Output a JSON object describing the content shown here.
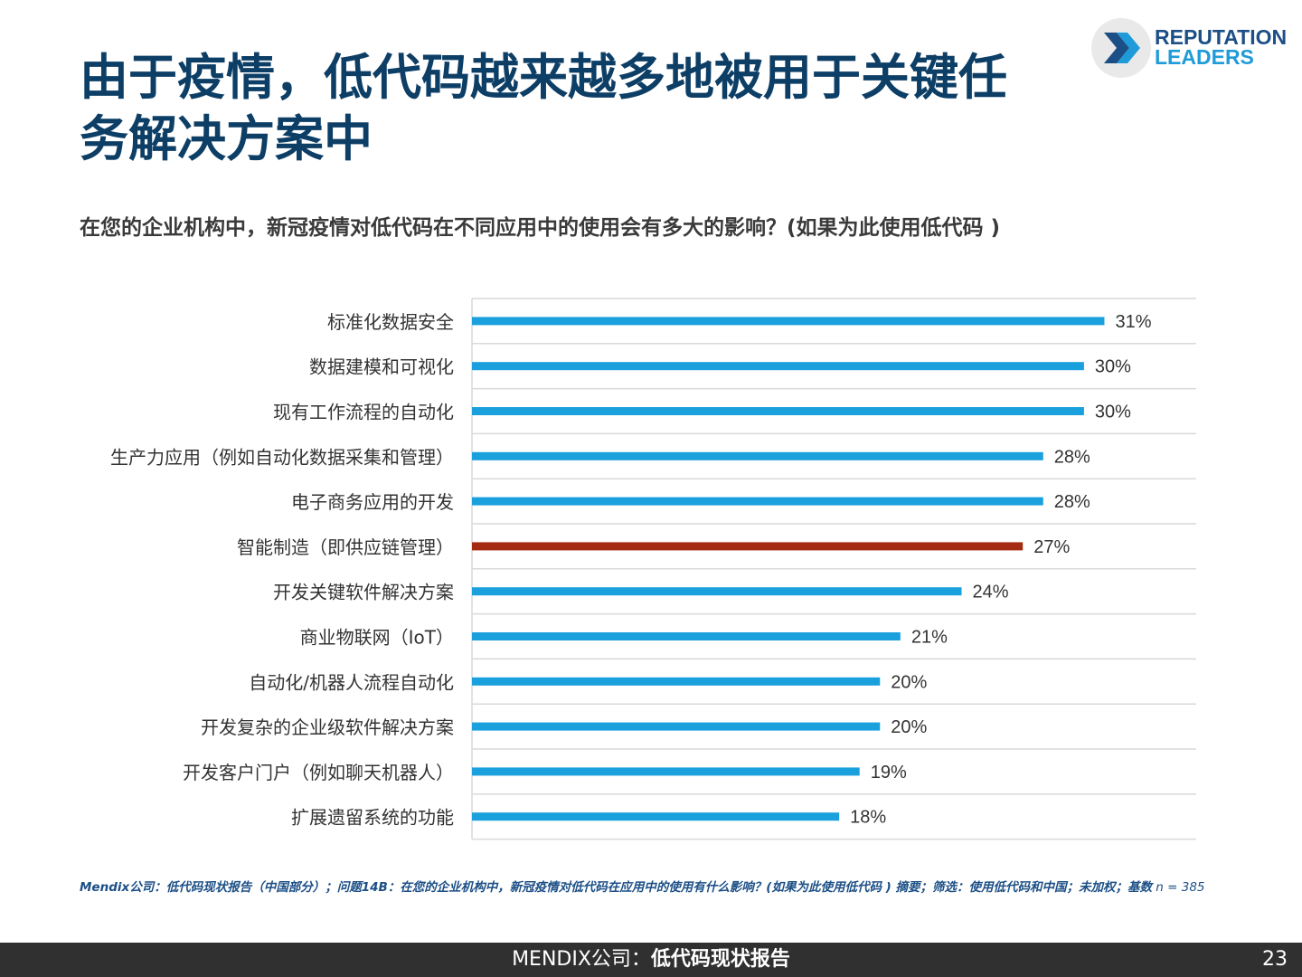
{
  "title": {
    "line1": "由于疫情，低代码越来越多地被用于关键任",
    "line2": "务解决方案中"
  },
  "logo": {
    "line1": "REPUTATION",
    "line2": "LEADERS"
  },
  "question": "在您的企业机构中，新冠疫情对低代码在不同应用中的使用会有多大的影响？(如果为此使用低代码 )",
  "chart_data": {
    "type": "bar",
    "orientation": "horizontal",
    "categories": [
      "标准化数据安全",
      "数据建模和可视化",
      "现有工作流程的自动化",
      "生产力应用（例如自动化数据采集和管理）",
      "电子商务应用的开发",
      "智能制造（即供应链管理）",
      "开发关键软件解决方案",
      "商业物联网（IoT）",
      "自动化/机器人流程自动化",
      "开发复杂的企业级软件解决方案",
      "开发客户门户（例如聊天机器人）",
      "扩展遗留系统的功能"
    ],
    "values": [
      31,
      30,
      30,
      28,
      28,
      27,
      24,
      21,
      20,
      20,
      19,
      18
    ],
    "value_labels": [
      "31%",
      "30%",
      "30%",
      "28%",
      "28%",
      "27%",
      "24%",
      "21%",
      "20%",
      "20%",
      "19%",
      "18%"
    ],
    "highlight_index": 5,
    "colors": {
      "bar": "#1aa0dc",
      "highlight": "#a52a12",
      "grid": "#d9d9d9",
      "label": "#333333"
    },
    "xlim": [
      0,
      35.5
    ],
    "grid": true
  },
  "footnote": {
    "source_bold": "Mendix公司：低代码现状报告（中国部分）；问题14B：在您的企业机构中，新冠疫情对低代码在应用中的使用有什么影响？(如果为此使用低代码 ) 摘要；筛选：使用低代码和中国；未加权；基数",
    "base": " n = 385"
  },
  "footer": {
    "left": "MENDIX公司：",
    "right": "低代码现状报告",
    "page_number": "23"
  }
}
